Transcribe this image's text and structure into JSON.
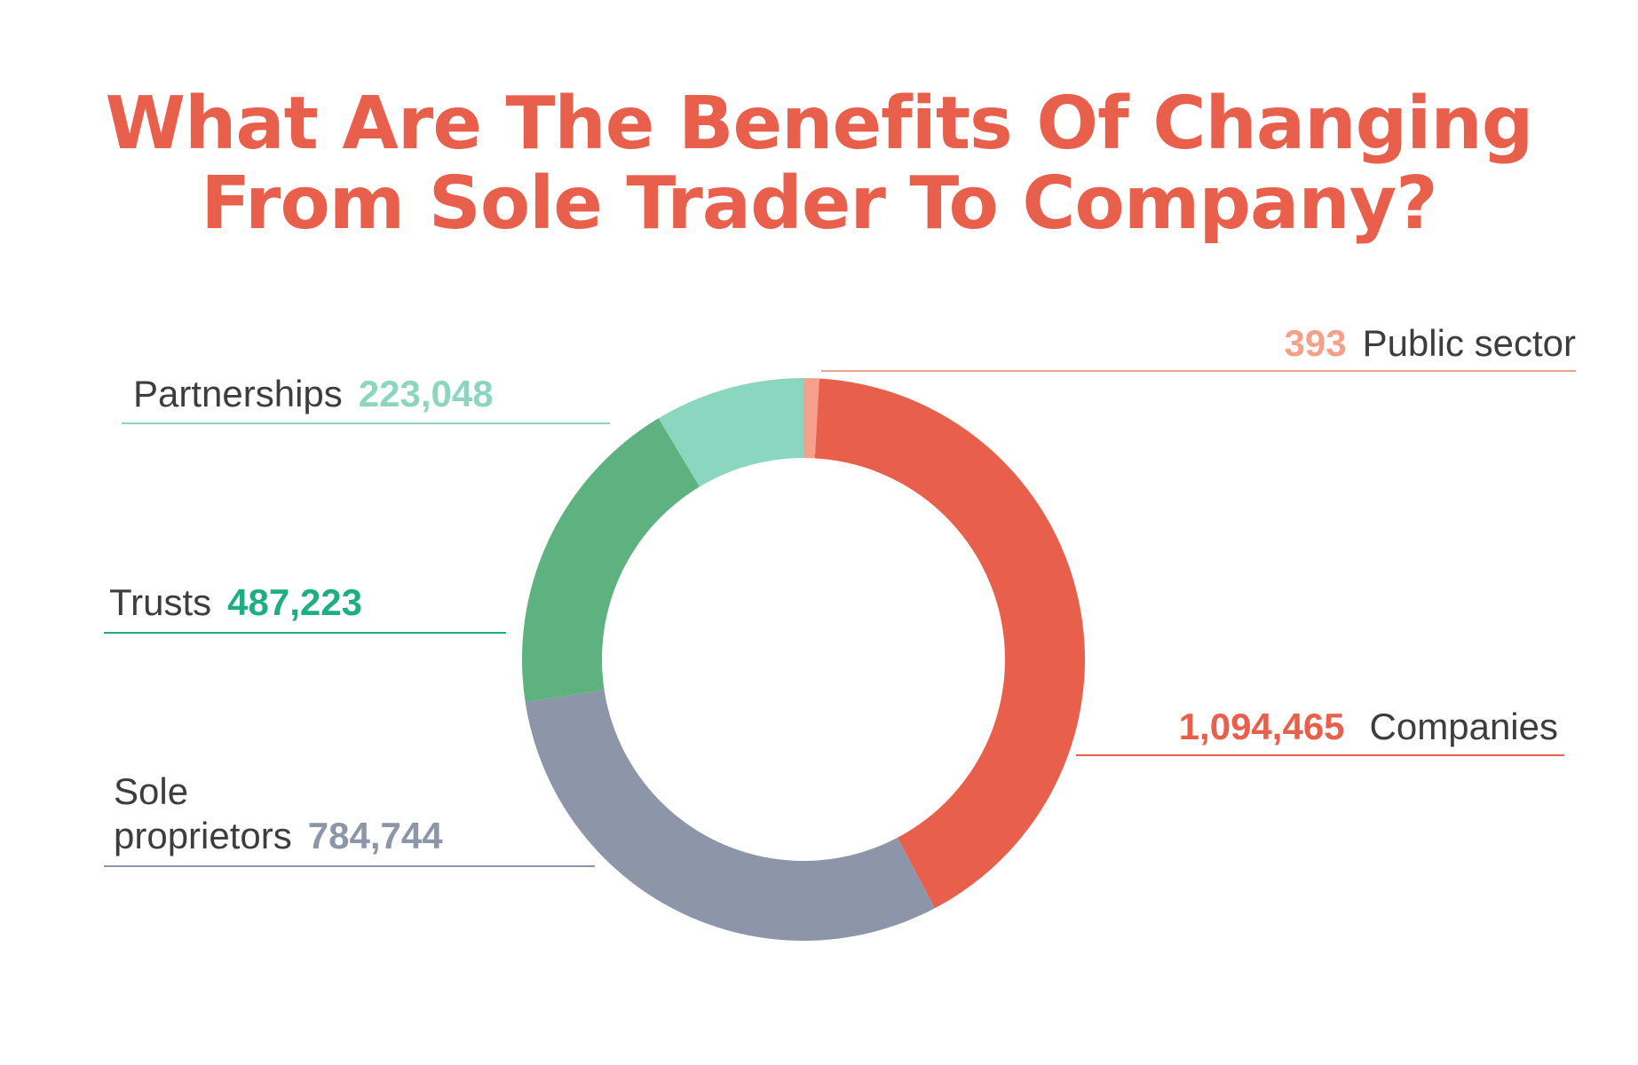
{
  "title_lines": [
    "What Are The Benefits Of Changing",
    "From Sole Trader To Company?"
  ],
  "chart_data": {
    "type": "pie",
    "donut": true,
    "title": "What Are The Benefits Of Changing From Sole Trader To Company?",
    "categories": [
      "Public sector",
      "Companies",
      "Sole proprietors",
      "Trusts",
      "Partnerships"
    ],
    "values": [
      393,
      1094465,
      784744,
      487223,
      223048
    ],
    "labels": [
      "393",
      "1,094,465",
      "784,744",
      "487,223",
      "223,048"
    ],
    "colors": [
      "#f5a08a",
      "#e8604c",
      "#8c96a8",
      "#5db27f",
      "#8bd6bf"
    ],
    "value_colors": [
      "#f5a08a",
      "#e8604c",
      "#8c96a8",
      "#1fae82",
      "#8bd6bf"
    ],
    "name_lines": {
      "Sole proprietors": [
        "Sole",
        "proprietors"
      ]
    }
  }
}
